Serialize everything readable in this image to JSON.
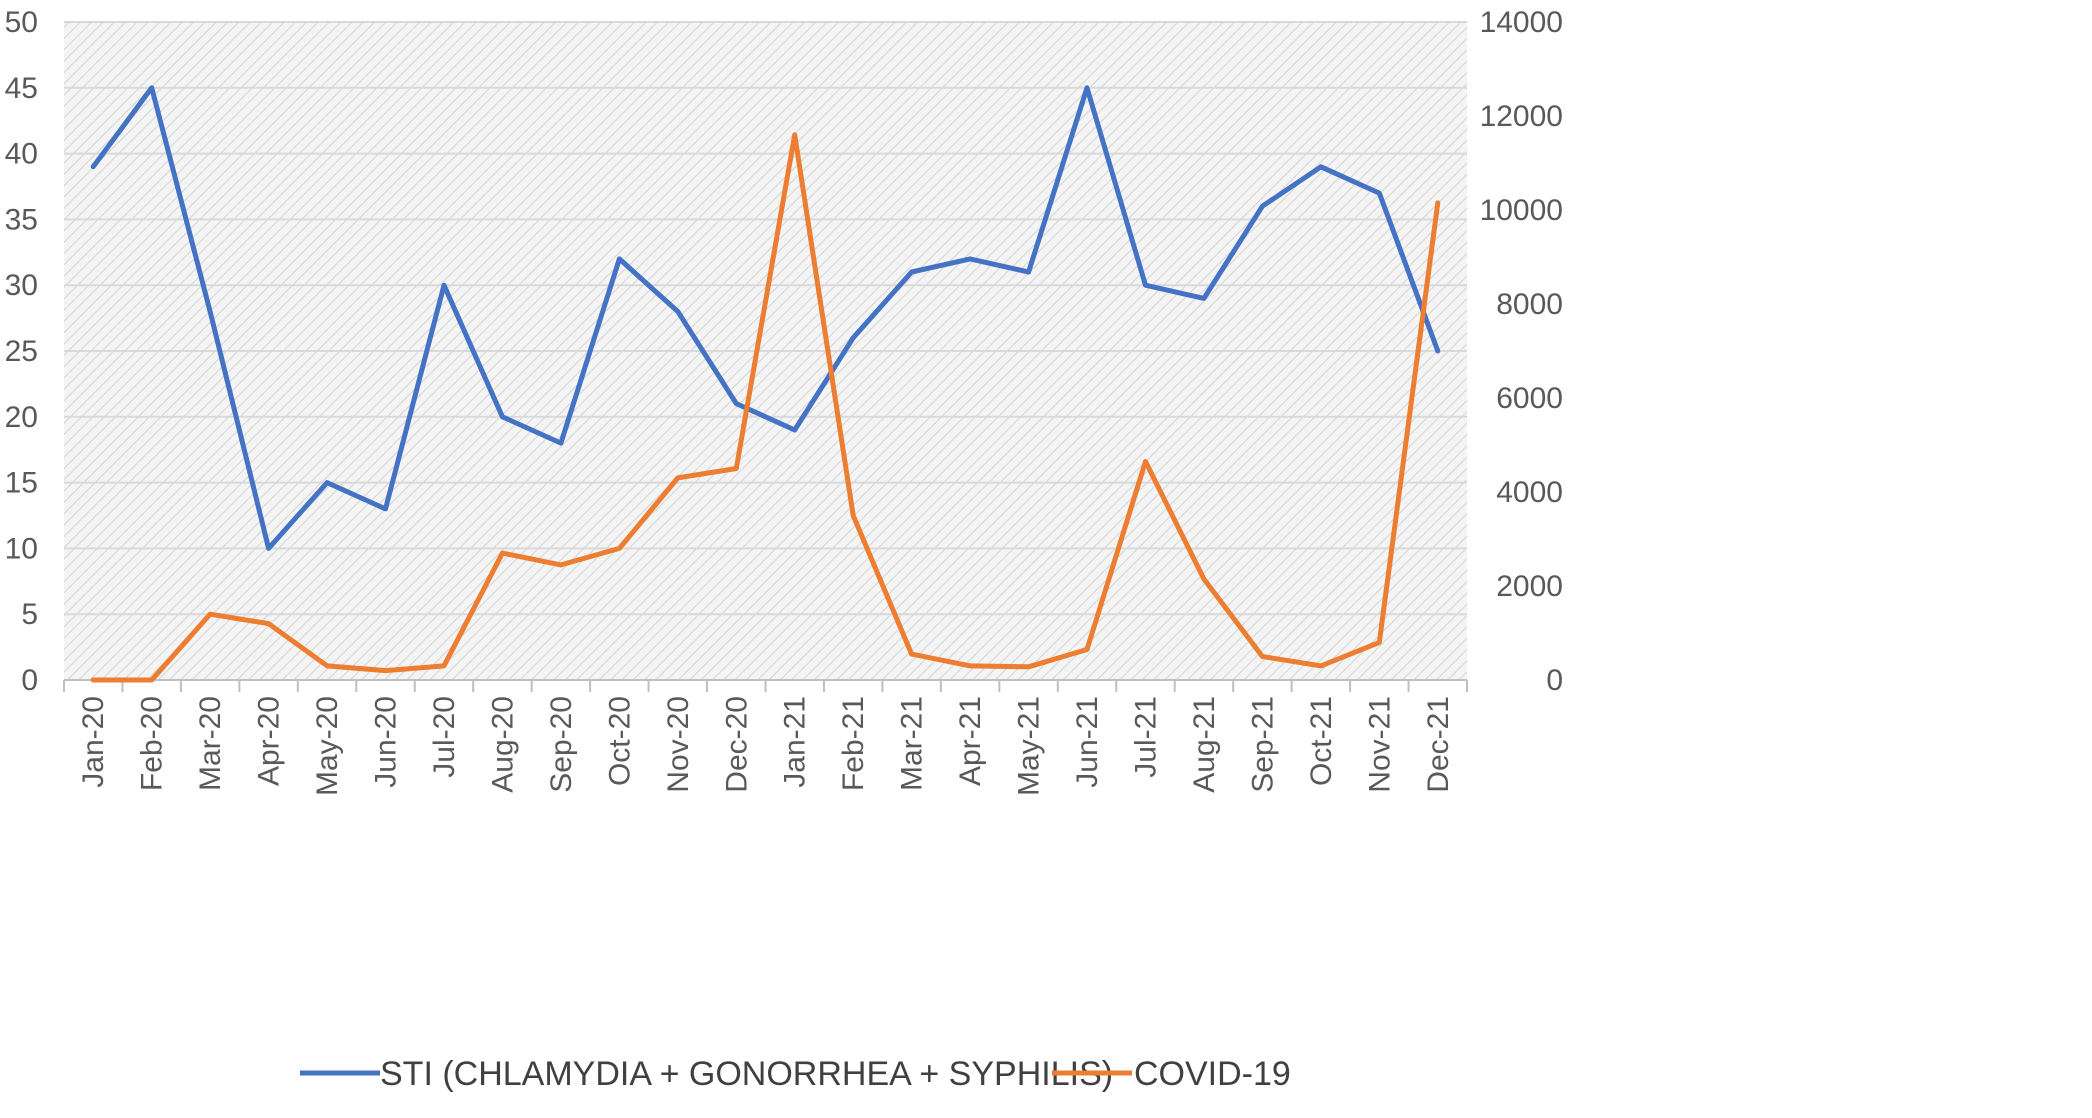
{
  "chart_data": {
    "type": "line",
    "title": "",
    "xlabel": "",
    "ylabel": "",
    "y2label": "",
    "categories": [
      "Jan-20",
      "Feb-20",
      "Mar-20",
      "Apr-20",
      "May-20",
      "Jun-20",
      "Jul-20",
      "Aug-20",
      "Sep-20",
      "Oct-20",
      "Nov-20",
      "Dec-20",
      "Jan-21",
      "Feb-21",
      "Mar-21",
      "Apr-21",
      "May-21",
      "Jun-21",
      "Jul-21",
      "Aug-21",
      "Sep-21",
      "Oct-21",
      "Nov-21",
      "Dec-21"
    ],
    "ylim": [
      0,
      50
    ],
    "yticks": [
      "0",
      "5",
      "10",
      "15",
      "20",
      "25",
      "30",
      "35",
      "40",
      "45",
      "50"
    ],
    "y2lim": [
      0,
      14000
    ],
    "y2ticks": [
      "0",
      "2000",
      "4000",
      "6000",
      "8000",
      "10000",
      "12000",
      "14000"
    ],
    "grid": true,
    "legend_position": "bottom",
    "series": [
      {
        "name": "STI (CHLAMYDIA + GONORRHEA + SYPHILIS)",
        "axis": "left",
        "color": "#4472C4",
        "values": [
          39,
          45,
          28,
          10,
          15,
          13,
          30,
          20,
          18,
          32,
          28,
          21,
          19,
          26,
          31,
          32,
          31,
          45,
          30,
          29,
          36,
          39,
          37,
          25
        ]
      },
      {
        "name": "COVID-19",
        "axis": "right",
        "color": "#ED7D31",
        "values": [
          0,
          0,
          1400,
          1200,
          300,
          200,
          300,
          2700,
          2450,
          2800,
          4300,
          4500,
          11600,
          3500,
          550,
          300,
          280,
          650,
          4650,
          2150,
          500,
          300,
          800,
          10150
        ]
      }
    ]
  }
}
